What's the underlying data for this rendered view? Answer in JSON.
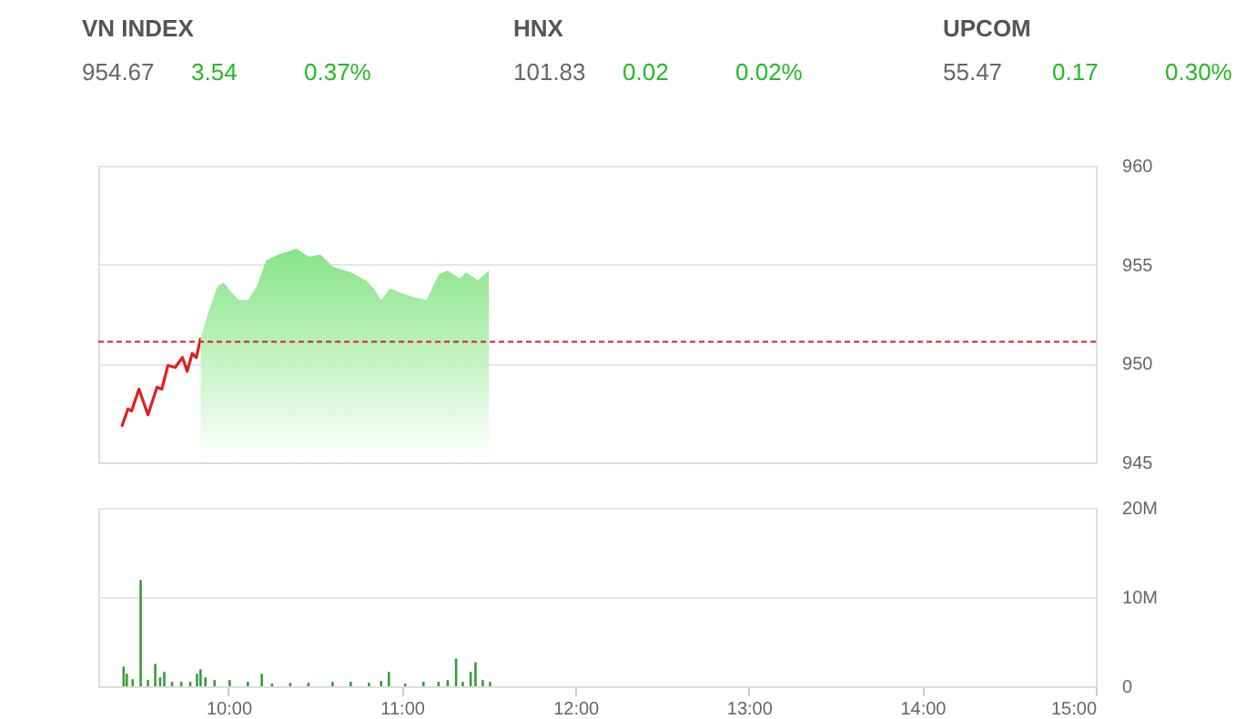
{
  "chart_data": [
    {
      "type": "other",
      "annotations": [
        "VN INDEX",
        "954.67",
        "3.54",
        "0.37%",
        "HNX",
        "101.83",
        "0.02",
        "0.02%",
        "UPCOM",
        "55.47",
        "0.17",
        "0.30%"
      ]
    },
    {
      "type": "line",
      "xlim": [
        9.25,
        15
      ],
      "ylim": [
        945,
        960
      ],
      "yticks": [
        945,
        950,
        955,
        960
      ],
      "grid": "y",
      "tick_labels": "y",
      "series": [
        {
          "type": "line",
          "color": "#e02020",
          "x": [
            9.385,
            9.421,
            9.442,
            9.484,
            9.536,
            9.588,
            9.616,
            9.651,
            9.693,
            9.735,
            9.762,
            9.791,
            9.815,
            9.84
          ],
          "values": [
            946.8,
            947.7,
            947.6,
            948.7,
            947.4,
            948.8,
            948.7,
            949.9,
            949.8,
            950.3,
            949.6,
            950.5,
            950.3,
            951.3
          ]
        },
        {
          "type": "area",
          "color": "#86e486",
          "x": [
            9.84,
            9.885,
            9.937,
            9.972,
            10.007,
            10.06,
            10.112,
            10.164,
            10.217,
            10.286,
            10.391,
            10.461,
            10.531,
            10.6,
            10.705,
            10.793,
            10.845,
            10.88,
            10.932,
            10.984,
            11.054,
            11.141,
            11.212,
            11.264,
            11.333,
            11.369,
            11.438,
            11.501
          ],
          "values": [
            951.3,
            952.6,
            953.9,
            954.1,
            953.7,
            953.2,
            953.2,
            953.9,
            955.2,
            955.5,
            955.8,
            955.4,
            955.5,
            954.9,
            954.6,
            954.2,
            953.7,
            953.2,
            953.8,
            953.6,
            953.4,
            953.2,
            954.5,
            954.7,
            954.3,
            954.6,
            954.2,
            954.7
          ]
        }
      ],
      "ref_lines": [
        {
          "axis": "y",
          "value": 951.1,
          "label": null,
          "color": "#d62020",
          "line_style": "dashed"
        }
      ]
    },
    {
      "type": "bar",
      "color": "#3a9a3a",
      "xlim": [
        9.25,
        15
      ],
      "xticks": [
        {
          "value": 10,
          "label": "10:00"
        },
        {
          "value": 11,
          "label": "11:00"
        },
        {
          "value": 12,
          "label": "12:00"
        },
        {
          "value": 13,
          "label": "13:00"
        },
        {
          "value": 14,
          "label": "14:00"
        },
        {
          "value": 15,
          "label": "15:00"
        }
      ],
      "ylim": [
        0,
        20
      ],
      "yticks": [
        0,
        {
          "value": 10,
          "label": "10M"
        },
        {
          "value": 20,
          "label": "20M"
        }
      ],
      "grid": "y",
      "x": [
        9.396,
        9.414,
        9.448,
        9.494,
        9.536,
        9.578,
        9.606,
        9.63,
        9.675,
        9.728,
        9.78,
        9.819,
        9.839,
        9.867,
        9.92,
        10.007,
        10.112,
        10.192,
        10.251,
        10.356,
        10.461,
        10.6,
        10.705,
        10.81,
        10.88,
        10.925,
        11.019,
        11.124,
        11.211,
        11.264,
        11.312,
        11.351,
        11.396,
        11.424,
        11.466,
        11.508
      ],
      "values": [
        2.2,
        1.4,
        0.8,
        11.9,
        0.7,
        2.5,
        1.0,
        1.6,
        0.5,
        0.5,
        0.5,
        1.4,
        1.9,
        1.0,
        0.7,
        0.7,
        0.5,
        1.4,
        0.3,
        0.4,
        0.4,
        0.5,
        0.5,
        0.4,
        0.6,
        1.6,
        0.3,
        0.5,
        0.5,
        0.7,
        3.1,
        0.5,
        1.6,
        2.7,
        0.7,
        0.5
      ]
    }
  ]
}
